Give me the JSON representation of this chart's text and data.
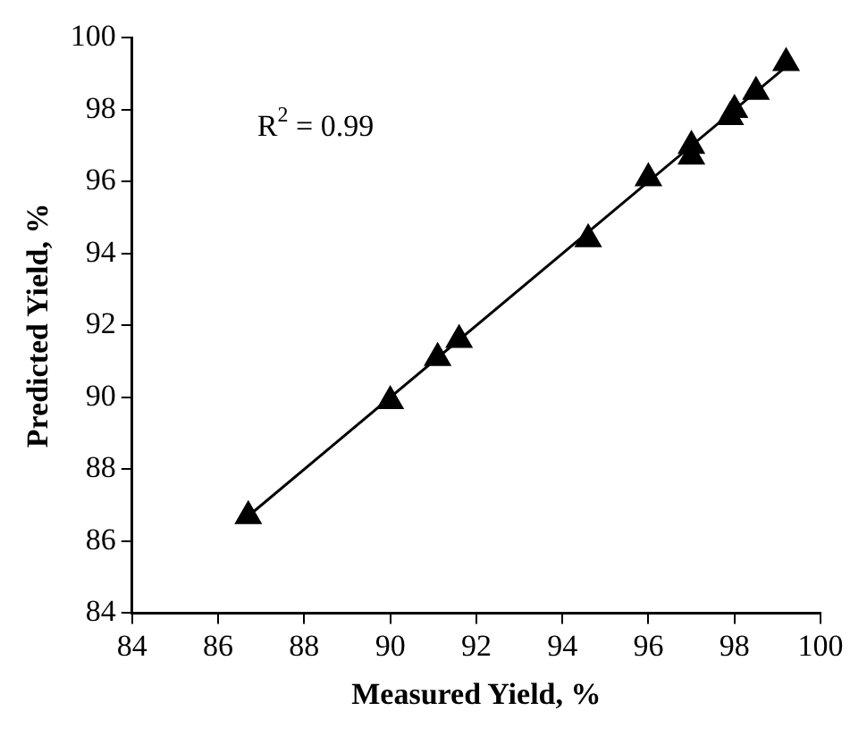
{
  "chart_data": {
    "type": "scatter",
    "xlabel": "Measured Yield, %",
    "ylabel": "Predicted Yield, %",
    "annotations": [
      "R$^{2}$ = 0.99"
    ],
    "series": [
      {
        "color": "#000000",
        "marker": "triangle",
        "x": [
          86.7,
          90.0,
          91.1,
          91.6,
          94.6,
          96.0,
          97.0,
          97.0,
          97.9,
          98.0,
          98.5,
          99.2
        ],
        "values": [
          86.7,
          89.9,
          91.1,
          91.6,
          94.4,
          96.1,
          96.7,
          97.0,
          97.8,
          98.0,
          98.5,
          99.3
        ]
      },
      {
        "type": "line",
        "color": "#000000",
        "marker": "none",
        "x": [
          86.7,
          99.3
        ],
        "values": [
          86.7,
          99.3
        ]
      }
    ],
    "xlim": [
      84,
      100
    ],
    "ylim": [
      84,
      100
    ],
    "xticks": [
      84,
      86,
      88,
      90,
      92,
      94,
      96,
      98,
      100
    ],
    "yticks": [
      84,
      86,
      88,
      90,
      92,
      94,
      96,
      98,
      100
    ],
    "grid": false,
    "legend": false
  }
}
